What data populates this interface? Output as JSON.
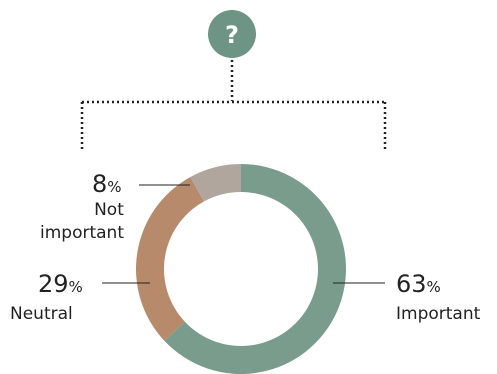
{
  "icon": {
    "name": "question-mark-icon",
    "glyph": "?",
    "color": "#6e9485"
  },
  "chart_data": {
    "type": "pie",
    "variant": "donut",
    "start_angle_deg": 0,
    "direction": "clockwise",
    "slices": [
      {
        "label_lines": [
          "Important"
        ],
        "value": 63,
        "display": "63",
        "unit": "%",
        "color": "#7a9c8c"
      },
      {
        "label_lines": [
          "Neutral"
        ],
        "value": 29,
        "display": "29",
        "unit": "%",
        "color": "#b88a6c"
      },
      {
        "label_lines": [
          "Not",
          "important"
        ],
        "value": 8,
        "display": "8",
        "unit": "%",
        "color": "#b0a69e"
      }
    ]
  }
}
